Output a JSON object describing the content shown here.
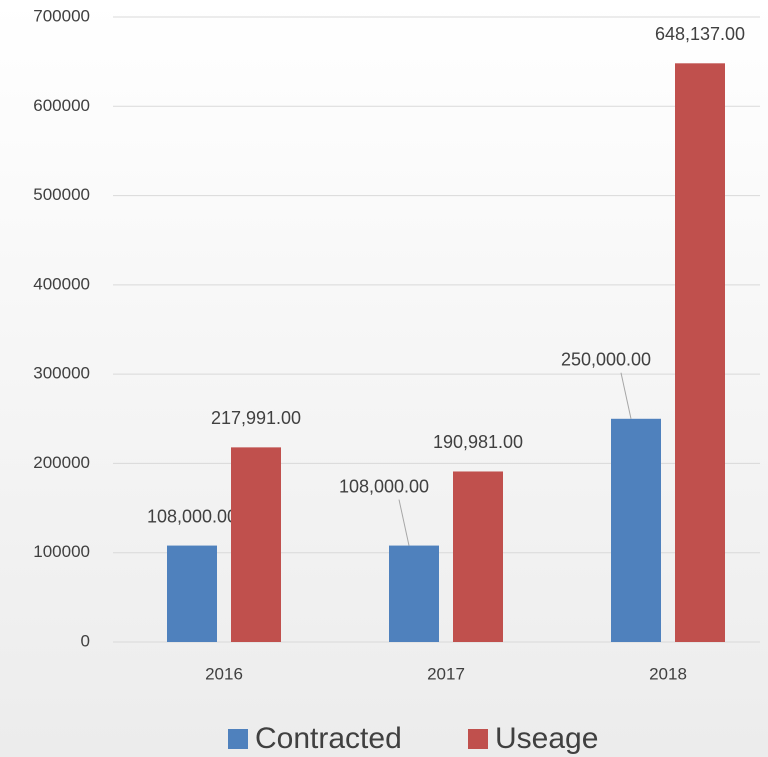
{
  "chart_data": {
    "type": "bar",
    "categories": [
      "2016",
      "2017",
      "2018"
    ],
    "series": [
      {
        "name": "Contracted",
        "color": "#4f81bd",
        "values": [
          108000,
          108000,
          250000
        ],
        "value_labels": [
          "108,000.00",
          "108,000.00",
          "250,000.00"
        ]
      },
      {
        "name": "Useage",
        "color": "#c0504d",
        "values": [
          217991,
          190981,
          648137
        ],
        "value_labels": [
          "217,991.00",
          "190,981.00",
          "648,137.00"
        ]
      }
    ],
    "ylim": [
      0,
      700000
    ],
    "yticks": [
      0,
      100000,
      200000,
      300000,
      400000,
      500000,
      600000,
      700000
    ],
    "grid": true,
    "legend": "bottom"
  }
}
